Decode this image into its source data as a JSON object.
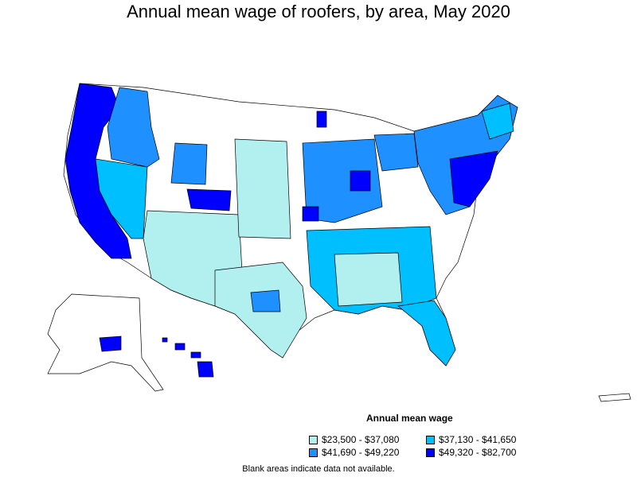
{
  "title": "Annual mean wage of roofers, by area, May 2020",
  "legend": {
    "title": "Annual mean wage",
    "items": [
      {
        "label": "$23,500 - $37,080",
        "color": "#b2f0f0"
      },
      {
        "label": "$37,130 - $41,650",
        "color": "#00bfff"
      },
      {
        "label": "$41,690 - $49,220",
        "color": "#1e90ff"
      },
      {
        "label": "$49,320 - $82,700",
        "color": "#0000ff"
      }
    ]
  },
  "footnote": "Blank areas indicate data not available."
}
